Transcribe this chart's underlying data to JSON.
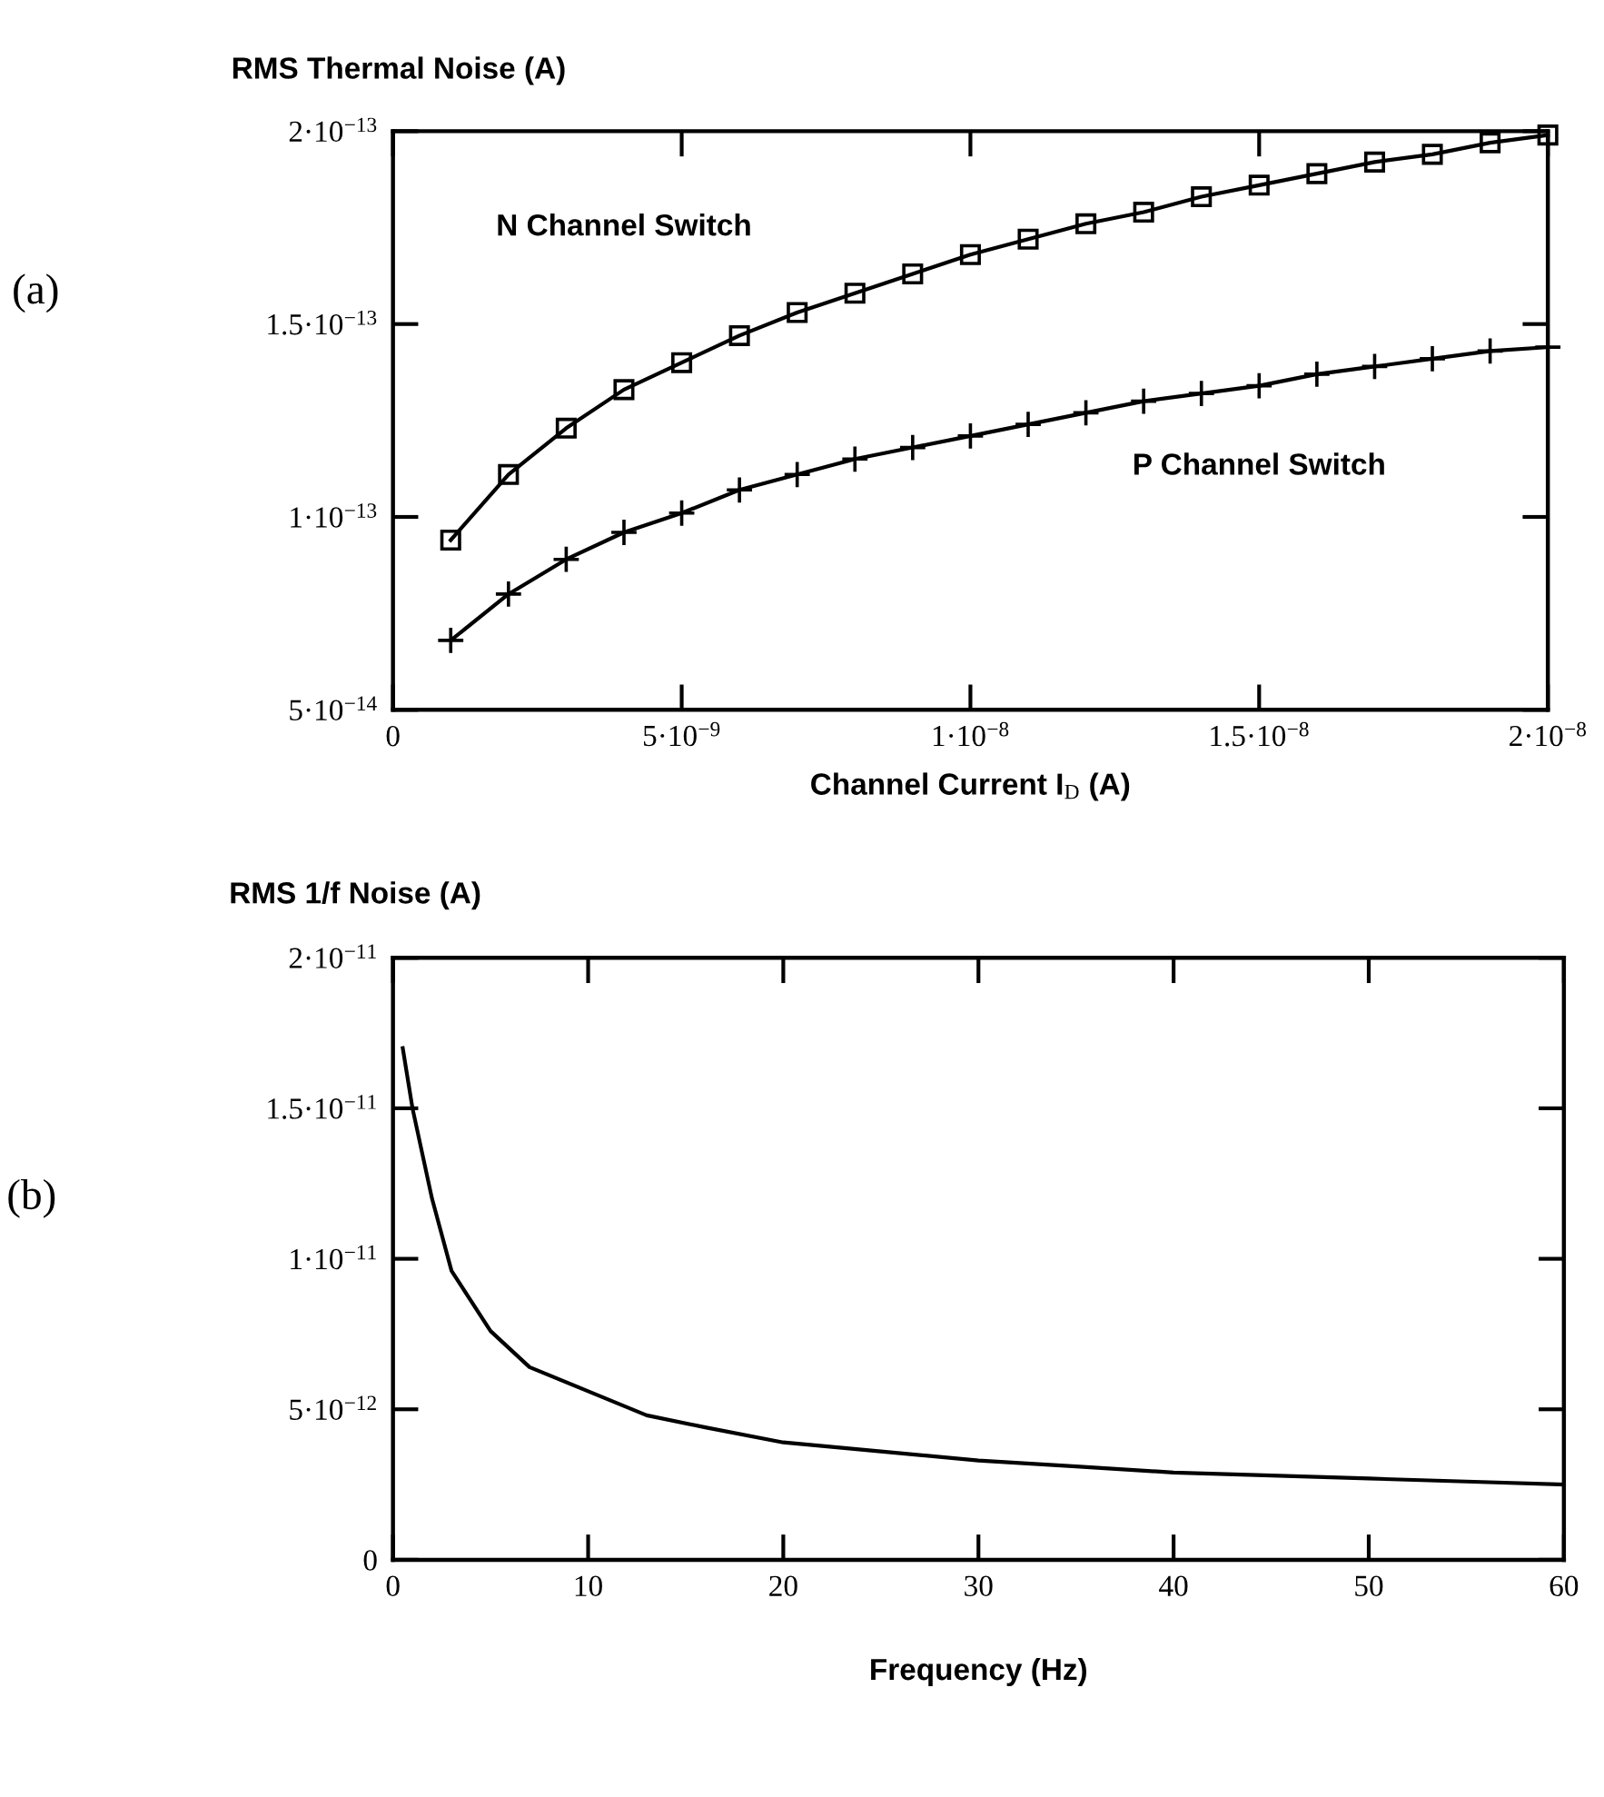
{
  "chart_data": [
    {
      "type": "line",
      "ylabel": "RMS Thermal Noise (A)",
      "xlabel": "Channel Current I$_{D}$ (A)",
      "annotations": [
        "(a)"
      ],
      "marker": "none",
      "grid": false,
      "legend": false,
      "xlim": [
        0,
        2e-08
      ],
      "ylim": [
        5e-14,
        2e-13
      ],
      "xticks": [
        {
          "value": 0,
          "label": "0"
        },
        {
          "value": 5e-09,
          "label": "5·10$^{−9}$"
        },
        {
          "value": 1e-08,
          "label": "1·10$^{−8}$"
        },
        {
          "value": 1.5e-08,
          "label": "1.5·10$^{−8}$"
        },
        {
          "value": 2e-08,
          "label": "2·10$^{−8}$"
        }
      ],
      "yticks": [
        {
          "value": 5e-14,
          "label": "5·10$^{−14}$"
        },
        {
          "value": 1e-13,
          "label": "1·10$^{−13}$"
        },
        {
          "value": 1.5e-13,
          "label": "1.5·10$^{−13}$"
        },
        {
          "value": 2e-13,
          "label": "2·10$^{−13}$"
        }
      ],
      "x": [
        1e-09,
        2e-09,
        3e-09,
        4e-09,
        5e-09,
        6e-09,
        7e-09,
        8e-09,
        9e-09,
        1e-08,
        1.1e-08,
        1.2e-08,
        1.3e-08,
        1.4e-08,
        1.5e-08,
        1.6e-08,
        1.7e-08,
        1.8e-08,
        1.9e-08,
        2e-08
      ],
      "series": [
        {
          "name": "N Channel Switch",
          "color": "#000000",
          "marker": "square",
          "values": [
            9.4e-14,
            1.11e-13,
            1.23e-13,
            1.33e-13,
            1.4e-13,
            1.47e-13,
            1.53e-13,
            1.58e-13,
            1.63e-13,
            1.68e-13,
            1.72e-13,
            1.76e-13,
            1.79e-13,
            1.83e-13,
            1.86e-13,
            1.89e-13,
            1.92e-13,
            1.94e-13,
            1.97e-13,
            1.99e-13
          ]
        },
        {
          "name": "P Channel Switch",
          "color": "#000000",
          "marker": "cross",
          "values": [
            6.8e-14,
            8e-14,
            8.9e-14,
            9.6e-14,
            1.01e-13,
            1.07e-13,
            1.11e-13,
            1.15e-13,
            1.18e-13,
            1.21e-13,
            1.24e-13,
            1.27e-13,
            1.3e-13,
            1.32e-13,
            1.34e-13,
            1.37e-13,
            1.39e-13,
            1.41e-13,
            1.43e-13,
            1.44e-13
          ]
        }
      ]
    },
    {
      "type": "line",
      "ylabel": "RMS 1/f Noise (A)",
      "xlabel": "Frequency (Hz)",
      "annotations": [
        "(b)"
      ],
      "marker": "none",
      "grid": false,
      "legend": false,
      "xlim": [
        0,
        60
      ],
      "ylim": [
        0,
        2e-11
      ],
      "xticks": [
        0,
        10,
        20,
        30,
        40,
        50,
        60
      ],
      "yticks": [
        {
          "value": 0,
          "label": "0"
        },
        {
          "value": 5e-12,
          "label": "5·10$^{−12}$"
        },
        {
          "value": 1e-11,
          "label": "1·10$^{−11}$"
        },
        {
          "value": 1.5e-11,
          "label": "1.5·10$^{−11}$"
        },
        {
          "value": 2e-11,
          "label": "2·10$^{−11}$"
        }
      ],
      "x": [
        0.5,
        1,
        2,
        3,
        5,
        7,
        10,
        13,
        16,
        20,
        25,
        30,
        35,
        40,
        45,
        50,
        55,
        60
      ],
      "series": [
        {
          "color": "#000000",
          "values": [
            1.7e-11,
            1.5e-11,
            1.2e-11,
            9.6e-12,
            7.6e-12,
            6.4e-12,
            5.6e-12,
            4.8e-12,
            4.4e-12,
            3.9e-12,
            3.6e-12,
            3.3e-12,
            3.1e-12,
            2.9e-12,
            2.8e-12,
            2.7e-12,
            2.6e-12,
            2.5e-12
          ]
        }
      ]
    }
  ]
}
